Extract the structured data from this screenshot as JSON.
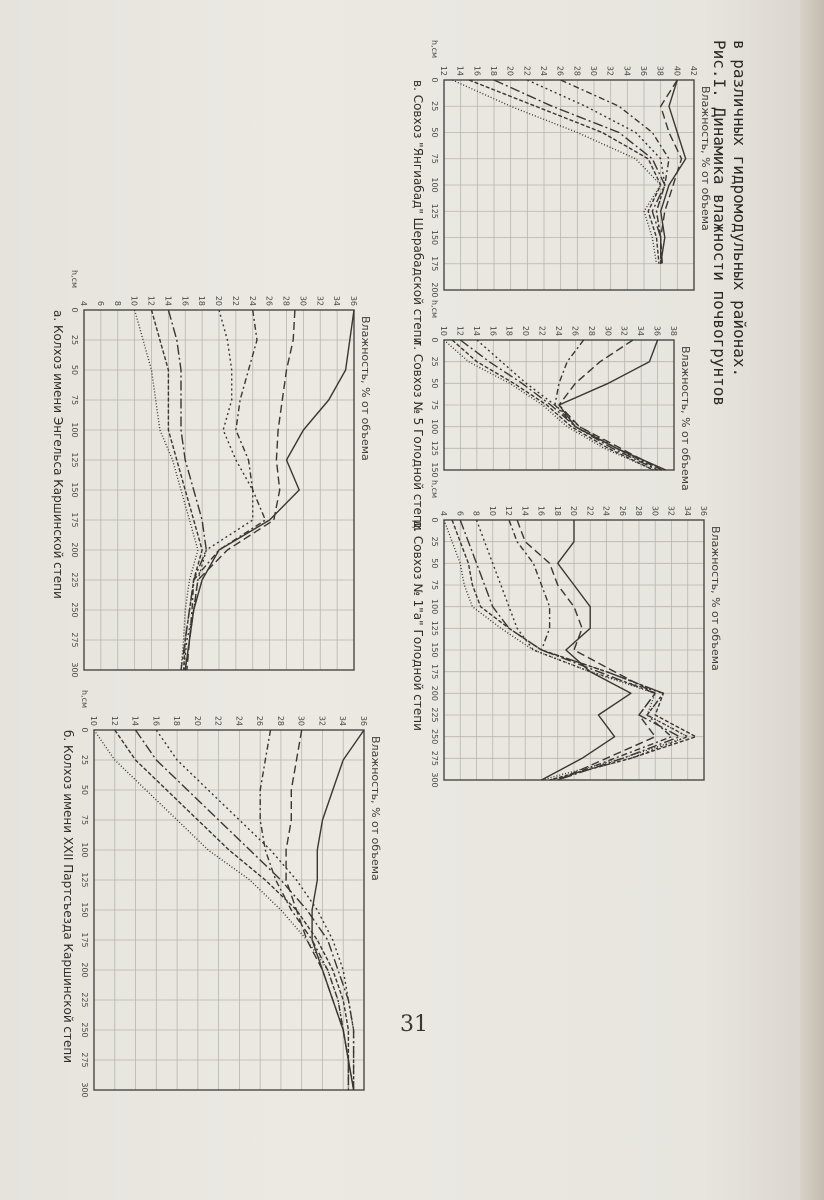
{
  "page_number": "31",
  "figure": {
    "caption_line1": "Рис.I. Динамика влажности почвогрунтов",
    "caption_line2": "в различных гидромодульных районах."
  },
  "colors": {
    "ink": "#3a3733",
    "grid": "#b8b5ae"
  },
  "chart_data": [
    {
      "id": "a",
      "type": "line",
      "title": "а. Колхоз имени Энгельса Каршинской степи",
      "ylabel": "Влажность, % от объема",
      "xlabel": "h,см",
      "x_ticks": [
        "0",
        "25",
        "50",
        "75",
        "100",
        "125",
        "150",
        "175",
        "200",
        "225",
        "250",
        "275",
        "300"
      ],
      "y_ticks": [
        "4",
        "6",
        "8",
        "10",
        "12",
        "14",
        "16",
        "18",
        "20",
        "22",
        "24",
        "26",
        "28",
        "30",
        "32",
        "34",
        "36"
      ],
      "xlim": [
        0,
        300
      ],
      "ylim": [
        4,
        36
      ],
      "x": [
        0,
        25,
        50,
        75,
        100,
        125,
        150,
        175,
        200,
        225,
        250,
        275,
        300
      ],
      "series": [
        {
          "values": [
            36,
            35.5,
            35,
            33,
            30,
            28,
            29.5,
            26,
            20,
            18,
            17,
            16.5,
            16
          ],
          "dash": ""
        },
        {
          "values": [
            29,
            28.8,
            28,
            27.5,
            27,
            26.8,
            27.2,
            26.5,
            21,
            17.5,
            17,
            16.5,
            16.2
          ],
          "dash": "8 4"
        },
        {
          "values": [
            24,
            24.5,
            23.5,
            22.5,
            22,
            23.5,
            24,
            25.5,
            20,
            17,
            16.8,
            16.5,
            16
          ],
          "dash": "6 3 2 3"
        },
        {
          "values": [
            20,
            21,
            21.5,
            21.5,
            20.5,
            22,
            24,
            24,
            18.5,
            17.5,
            17,
            16.2,
            15.8
          ],
          "dash": "2 3"
        },
        {
          "values": [
            14,
            15,
            15.5,
            15.5,
            15.5,
            16,
            17,
            18,
            18.5,
            17,
            16.5,
            16,
            15.5
          ],
          "dash": "10 3 2 3"
        },
        {
          "values": [
            12,
            13,
            14,
            14,
            14,
            15,
            16,
            17,
            18,
            17,
            16.5,
            16,
            15.8
          ],
          "dash": "4 2"
        },
        {
          "values": [
            10,
            11,
            12,
            12.5,
            13,
            14.5,
            15.5,
            16.5,
            17.5,
            16.5,
            16,
            15.8,
            15.5
          ],
          "dash": "1 2"
        }
      ]
    },
    {
      "id": "b",
      "type": "line",
      "title": "б. Колхоз имени XXII Партсъезда Каршинской степи",
      "ylabel": "Влажность, % от объема",
      "xlabel": "h,см",
      "x_ticks": [
        "0",
        "25",
        "50",
        "75",
        "100",
        "125",
        "150",
        "175",
        "200",
        "225",
        "250",
        "275",
        "300"
      ],
      "y_ticks": [
        "10",
        "12",
        "14",
        "16",
        "18",
        "20",
        "22",
        "24",
        "26",
        "28",
        "30",
        "32",
        "34",
        "36"
      ],
      "xlim": [
        0,
        300
      ],
      "ylim": [
        10,
        36
      ],
      "x": [
        0,
        25,
        50,
        75,
        100,
        125,
        150,
        175,
        200,
        225,
        250,
        275,
        300
      ],
      "series": [
        {
          "values": [
            36,
            34,
            33,
            32,
            31.5,
            31.5,
            31,
            31,
            32,
            33,
            34,
            34.5,
            35
          ],
          "dash": ""
        },
        {
          "values": [
            30,
            29.5,
            29,
            29,
            28.5,
            28.5,
            29.5,
            30.5,
            32,
            33,
            34,
            34.5,
            34.5
          ],
          "dash": "8 4"
        },
        {
          "values": [
            27,
            26.5,
            26,
            26,
            26.5,
            27.5,
            29,
            31,
            32.5,
            33.5,
            34,
            34.5,
            34.5
          ],
          "dash": "6 3 2 3"
        },
        {
          "values": [
            16,
            18,
            21,
            24,
            27,
            29.5,
            31.5,
            33,
            34,
            34.5,
            35,
            35,
            35
          ],
          "dash": "2 3"
        },
        {
          "values": [
            14,
            16,
            19,
            22,
            25,
            28,
            30.5,
            32.5,
            33.5,
            34.5,
            35,
            35,
            35
          ],
          "dash": "10 3 2 3"
        },
        {
          "values": [
            12,
            14,
            17,
            20,
            23,
            26.5,
            29.5,
            31.5,
            33,
            34,
            34.5,
            34.5,
            35
          ],
          "dash": "4 2"
        },
        {
          "values": [
            10,
            12,
            15,
            18,
            21,
            25,
            28,
            30.5,
            32.5,
            33.5,
            34,
            34.5,
            34.5
          ],
          "dash": "1 2"
        }
      ]
    },
    {
      "id": "v",
      "type": "line",
      "title": "в. Совхоз \"Янгиабад\" Шерабадской степи",
      "ylabel": "Влажность, % от объема",
      "xlabel": "h,см",
      "x_ticks": [
        "0",
        "25",
        "50",
        "75",
        "100",
        "125",
        "150",
        "175",
        "200"
      ],
      "y_ticks": [
        "12",
        "14",
        "16",
        "18",
        "20",
        "22",
        "24",
        "26",
        "28",
        "30",
        "32",
        "34",
        "36",
        "38",
        "40",
        "42"
      ],
      "xlim": [
        0,
        200
      ],
      "ylim": [
        12,
        42
      ],
      "x": [
        0,
        25,
        50,
        75,
        100,
        125,
        150,
        175
      ],
      "series": [
        {
          "values": [
            40,
            39,
            40,
            41,
            39,
            38,
            38.5,
            38
          ],
          "dash": ""
        },
        {
          "values": [
            40,
            38,
            39,
            40.5,
            39.5,
            38.5,
            38,
            38
          ],
          "dash": "8 4"
        },
        {
          "values": [
            26,
            33,
            37,
            39,
            38.5,
            37.5,
            38,
            38.2
          ],
          "dash": "6 3 2 3"
        },
        {
          "values": [
            22,
            29,
            35,
            38,
            38.5,
            37.5,
            38,
            38
          ],
          "dash": "2 3"
        },
        {
          "values": [
            18,
            25,
            33,
            37,
            38.5,
            37,
            38,
            38
          ],
          "dash": "10 3 2 3"
        },
        {
          "values": [
            15,
            23,
            31,
            36.5,
            38,
            36.5,
            37.5,
            37.8
          ],
          "dash": "4 2"
        },
        {
          "values": [
            13,
            20,
            28,
            35,
            38,
            36,
            37,
            37.5
          ],
          "dash": "1 2"
        }
      ]
    },
    {
      "id": "g",
      "type": "line",
      "title": "г. Совхоз № 5 Голодной степи",
      "ylabel": "Влажность, % от объема",
      "xlabel": "h,см",
      "x_ticks": [
        "0",
        "25",
        "50",
        "75",
        "100",
        "125",
        "150"
      ],
      "y_ticks": [
        "10",
        "12",
        "14",
        "16",
        "18",
        "20",
        "22",
        "24",
        "26",
        "28",
        "30",
        "32",
        "34",
        "36",
        "38"
      ],
      "xlim": [
        0,
        150
      ],
      "ylim": [
        10,
        38
      ],
      "x": [
        0,
        25,
        50,
        75,
        100,
        125,
        150
      ],
      "series": [
        {
          "values": [
            36,
            35,
            30,
            24,
            26,
            31,
            37
          ],
          "dash": ""
        },
        {
          "values": [
            33,
            29,
            26,
            24,
            26.5,
            31.5,
            36.5
          ],
          "dash": "8 4"
        },
        {
          "values": [
            27,
            25,
            24,
            23.5,
            26,
            31,
            36.5
          ],
          "dash": "6 3 2 3"
        },
        {
          "values": [
            14,
            17,
            20,
            23.5,
            26.5,
            31,
            36
          ],
          "dash": "2 3"
        },
        {
          "values": [
            12,
            15.5,
            19.5,
            23,
            26,
            30.5,
            36
          ],
          "dash": "10 3 2 3"
        },
        {
          "values": [
            11,
            14,
            18.5,
            22.5,
            25.5,
            30,
            35.5
          ],
          "dash": "4 2"
        },
        {
          "values": [
            10,
            13,
            18,
            22,
            25,
            29.5,
            35.5
          ],
          "dash": "1 2"
        }
      ]
    },
    {
      "id": "d",
      "type": "line",
      "title": "д. Совхоз № 1\"а\" Голодной степи",
      "ylabel": "Влажность, % от объема",
      "xlabel": "h,см",
      "x_ticks": [
        "0",
        "25",
        "50",
        "75",
        "100",
        "125",
        "150",
        "175",
        "200",
        "225",
        "250",
        "275",
        "300"
      ],
      "y_ticks": [
        "4",
        "6",
        "8",
        "10",
        "12",
        "14",
        "16",
        "18",
        "20",
        "22",
        "24",
        "26",
        "28",
        "30",
        "32",
        "34",
        "36"
      ],
      "xlim": [
        0,
        300
      ],
      "ylim": [
        4,
        36
      ],
      "x": [
        0,
        25,
        50,
        75,
        100,
        125,
        150,
        175,
        200,
        225,
        250,
        275,
        300
      ],
      "series": [
        {
          "values": [
            20,
            20,
            18,
            20,
            22,
            22,
            19,
            22,
            27,
            23,
            25,
            21,
            16
          ],
          "dash": ""
        },
        {
          "values": [
            13,
            14,
            17,
            18,
            20,
            21,
            20,
            25,
            30,
            28,
            30,
            24,
            18
          ],
          "dash": "8 4"
        },
        {
          "values": [
            12,
            13,
            15,
            16,
            17,
            17,
            16,
            24,
            31,
            29,
            32,
            25,
            18
          ],
          "dash": "6 3 2 3"
        },
        {
          "values": [
            8,
            9,
            10,
            11,
            12,
            13,
            15,
            22,
            31,
            29,
            34,
            27,
            17
          ],
          "dash": "2 3"
        },
        {
          "values": [
            6,
            7,
            8,
            9,
            10,
            12,
            16,
            23,
            30,
            28,
            33,
            26,
            18
          ],
          "dash": "10 3 2 3"
        },
        {
          "values": [
            5,
            6,
            7,
            7.5,
            8.5,
            12,
            16,
            24,
            31,
            30,
            35,
            27,
            17
          ],
          "dash": "4 2"
        },
        {
          "values": [
            4,
            5,
            6,
            6.5,
            7.5,
            11,
            15,
            22,
            30,
            29,
            34,
            26,
            16
          ],
          "dash": "1 2"
        }
      ]
    }
  ]
}
